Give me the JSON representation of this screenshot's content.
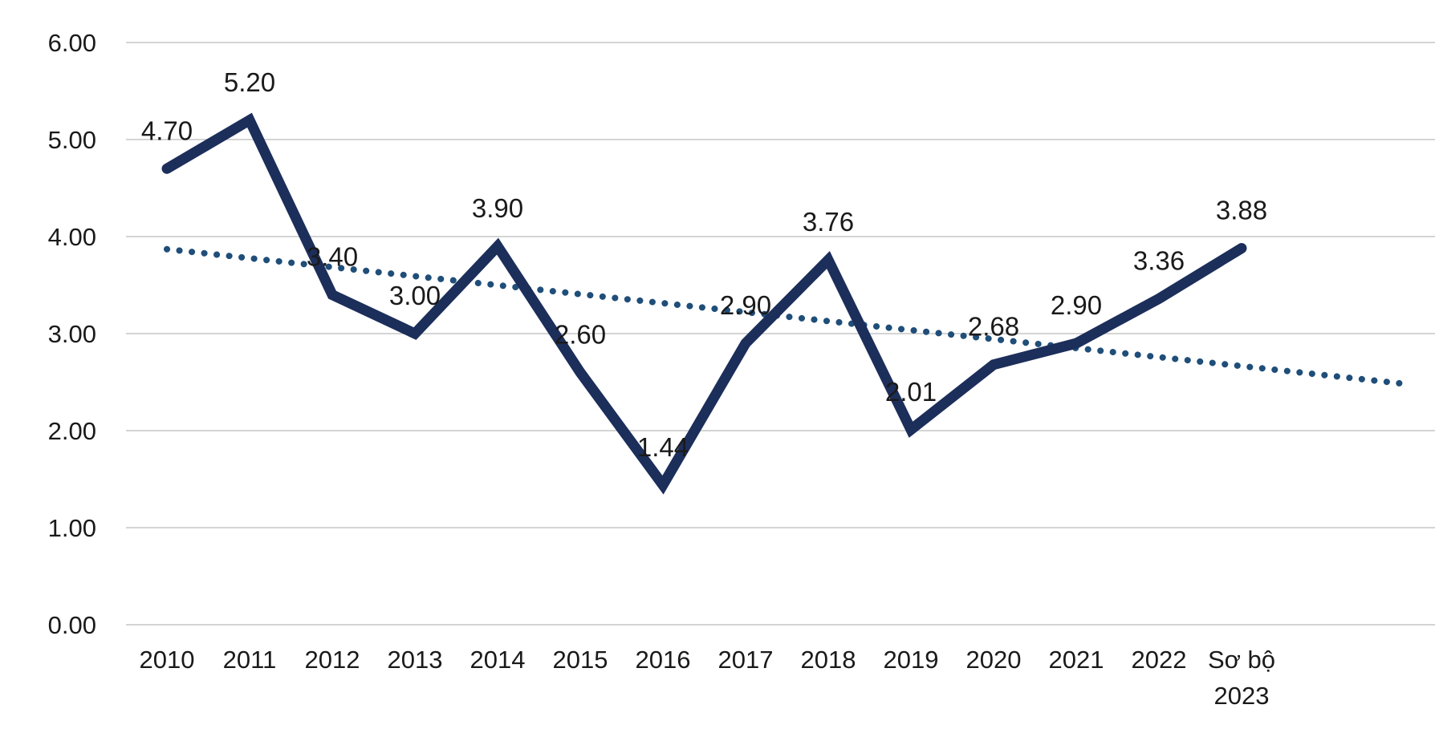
{
  "chart_data": {
    "type": "line",
    "title": "",
    "xlabel": "",
    "ylabel": "",
    "categories": [
      "2010",
      "2011",
      "2012",
      "2013",
      "2014",
      "2015",
      "2016",
      "2017",
      "2018",
      "2019",
      "2020",
      "2021",
      "2022",
      "Sơ bộ\n2023"
    ],
    "series": [
      {
        "name": "value-series",
        "values": [
          4.7,
          5.2,
          3.4,
          3.0,
          3.9,
          2.6,
          1.44,
          2.9,
          3.76,
          2.01,
          2.68,
          2.9,
          3.36,
          3.88
        ],
        "data_labels": [
          "4.70",
          "5.20",
          "3.40",
          "3.00",
          "3.90",
          "2.60",
          "1.44",
          "2.90",
          "3.76",
          "2.01",
          "2.68",
          "2.90",
          "3.36",
          "3.88"
        ]
      }
    ],
    "trendline": {
      "style": "dotted",
      "start_index": 0,
      "end_index": 15,
      "forecast_periods": 2,
      "start_value": 3.87,
      "end_value": 2.48
    },
    "y_axis": {
      "min": 0,
      "max": 6,
      "tick_step": 1,
      "tick_labels": [
        "0.00",
        "1.00",
        "2.00",
        "3.00",
        "4.00",
        "5.00",
        "6.00"
      ]
    },
    "grid": true,
    "legend_position": "none",
    "colors": {
      "series_line": "#1C2E5A",
      "trendline": "#1F4E79",
      "gridline": "#D4D4D4",
      "text": "#1A1A1A",
      "background": "#FFFFFF"
    }
  }
}
